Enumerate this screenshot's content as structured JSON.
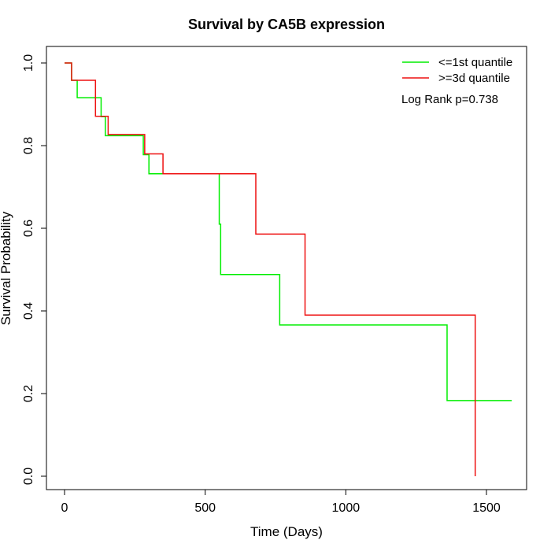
{
  "chart_data": {
    "type": "line",
    "title": "Survival by CA5B expression",
    "xlabel": "Time (Days)",
    "ylabel": "Survival Probability",
    "xlim": [
      0,
      1590
    ],
    "ylim": [
      0,
      1
    ],
    "x_ticks": [
      0,
      500,
      1000,
      1500
    ],
    "y_ticks": [
      0.0,
      0.2,
      0.4,
      0.6,
      0.8,
      1.0
    ],
    "x_tick_labels": [
      "0",
      "500",
      "1000",
      "1500"
    ],
    "y_tick_labels": [
      "0.0",
      "0.2",
      "0.4",
      "0.6",
      "0.8",
      "1.0"
    ],
    "grid": false,
    "legend_position": "top-right",
    "series": [
      {
        "name": "<=1st quantile",
        "color": "#00ee00",
        "step": true,
        "x": [
          0,
          25,
          45,
          130,
          145,
          280,
          300,
          550,
          555,
          765,
          1360,
          1590
        ],
        "y": [
          1.0,
          0.958,
          0.916,
          0.87,
          0.824,
          0.778,
          0.732,
          0.61,
          0.488,
          0.366,
          0.183,
          0.183
        ]
      },
      {
        "name": ">=3d quantile",
        "color": "#ee1111",
        "step": true,
        "x": [
          0,
          25,
          110,
          155,
          285,
          350,
          680,
          855,
          1460,
          1460
        ],
        "y": [
          1.0,
          0.958,
          0.871,
          0.827,
          0.78,
          0.732,
          0.586,
          0.39,
          0.39,
          0.0
        ]
      }
    ],
    "annotations": [
      "Log Rank p=0.738"
    ]
  }
}
